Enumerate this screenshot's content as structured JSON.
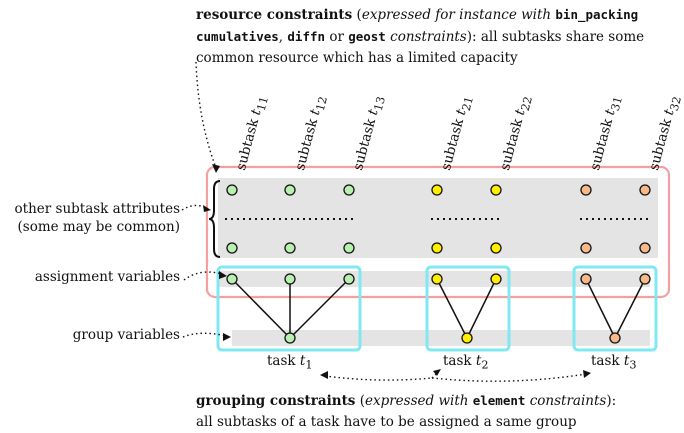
{
  "resource_constraints": {
    "title": "resource constraints",
    "paren_open": " (",
    "expressed_prefix": "expressed for instance with ",
    "kw_bin_packing": "bin_packing",
    "kw_cumulatives": "cumulatives",
    "comma": ", ",
    "kw_diffn": "diffn",
    "or_text": " or ",
    "kw_geost": "geost",
    "constraints_word": " constraints",
    "after_paren": "): all subtasks share some",
    "line3": "common resource which has a limited capacity"
  },
  "left_labels": {
    "other_attrs_line1": "other subtask attributes",
    "other_attrs_line2": "(some may be common)",
    "assignment": "assignment variables",
    "group": "group variables"
  },
  "subtasks": [
    {
      "label": "subtask",
      "sym": "t",
      "sub": "11"
    },
    {
      "label": "subtask",
      "sym": "t",
      "sub": "12"
    },
    {
      "label": "subtask",
      "sym": "t",
      "sub": "13"
    },
    {
      "label": "subtask",
      "sym": "t",
      "sub": "21"
    },
    {
      "label": "subtask",
      "sym": "t",
      "sub": "22"
    },
    {
      "label": "subtask",
      "sym": "t",
      "sub": "31"
    },
    {
      "label": "subtask",
      "sym": "t",
      "sub": "32"
    }
  ],
  "tasks": [
    {
      "label": "task",
      "sym": "t",
      "sub": "1",
      "color": "#b8f0b0"
    },
    {
      "label": "task",
      "sym": "t",
      "sub": "2",
      "color": "#ffee00"
    },
    {
      "label": "task",
      "sym": "t",
      "sub": "3",
      "color": "#f7b98a"
    }
  ],
  "grouping_constraints": {
    "title": "grouping constraints",
    "paren_open": " (",
    "expressed_prefix": "expressed with ",
    "kw_element": "element",
    "constraints_word": " constraints",
    "after_paren": "):",
    "line2": "all subtasks of a task have to be assigned a same group"
  },
  "colors": {
    "resource_box": "#f4a0a0",
    "group_box": "#7fe8f0",
    "band": "#e4e4e4"
  }
}
